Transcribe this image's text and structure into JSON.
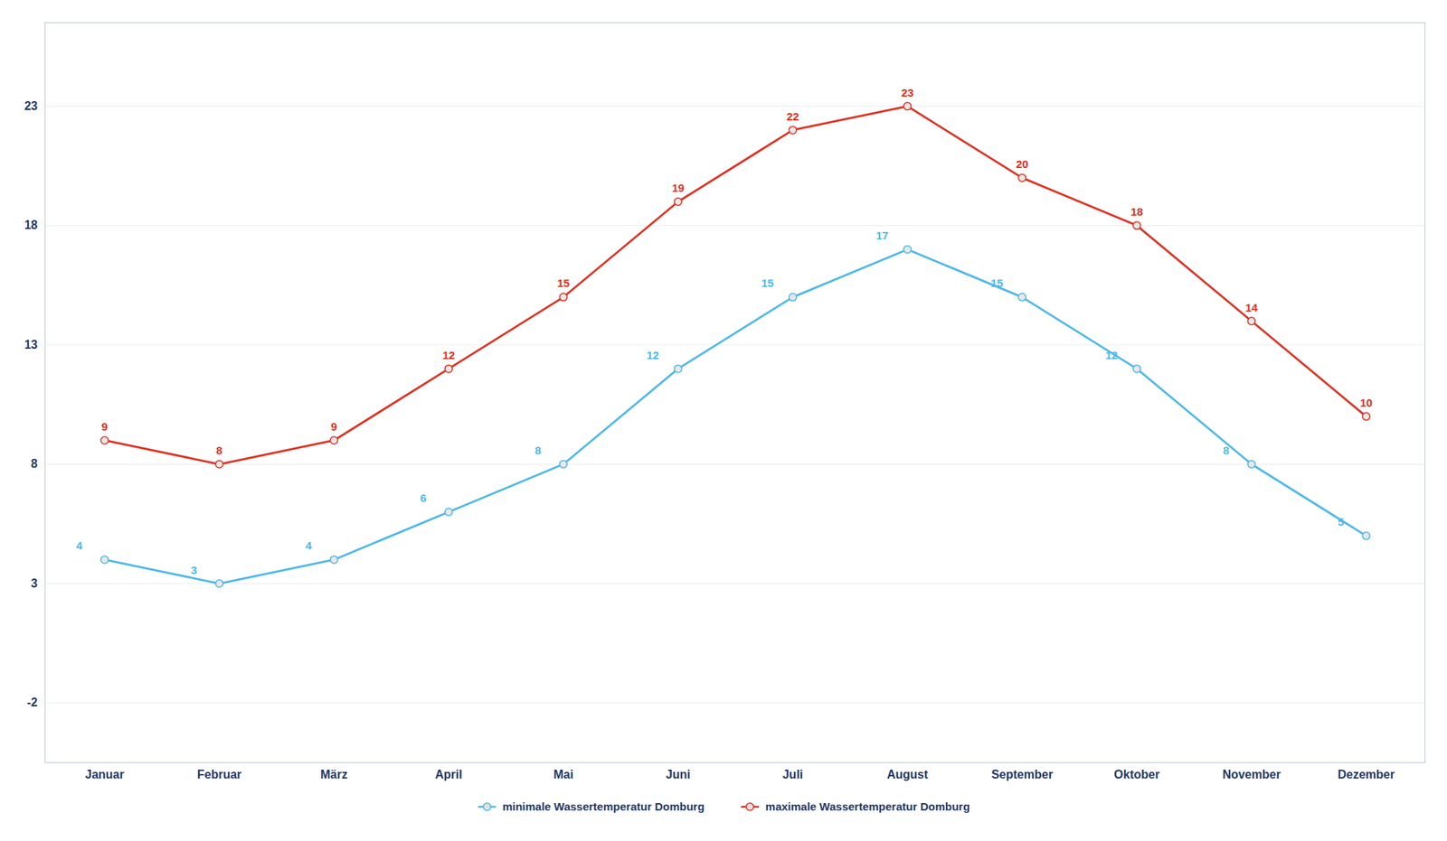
{
  "chart_data": {
    "type": "line",
    "categories": [
      "Januar",
      "Februar",
      "März",
      "April",
      "Mai",
      "Juni",
      "Juli",
      "August",
      "September",
      "Oktober",
      "November",
      "Dezember"
    ],
    "series": [
      {
        "name": "minimale Wassertemperatur Domburg",
        "color": "#4db8e8",
        "values": [
          4,
          3,
          4,
          6,
          8,
          12,
          15,
          17,
          15,
          12,
          8,
          5
        ]
      },
      {
        "name": "maximale Wassertemperatur Domburg",
        "color": "#e03020",
        "values": [
          9,
          8,
          9,
          12,
          15,
          19,
          22,
          23,
          20,
          18,
          14,
          10
        ]
      }
    ],
    "ylim": [
      -4.5,
      26.5
    ],
    "yticks": [
      -2,
      3,
      8,
      13,
      18,
      23
    ],
    "grid": "y",
    "data_labels": true,
    "legend": "bottom",
    "marker": "circle"
  }
}
